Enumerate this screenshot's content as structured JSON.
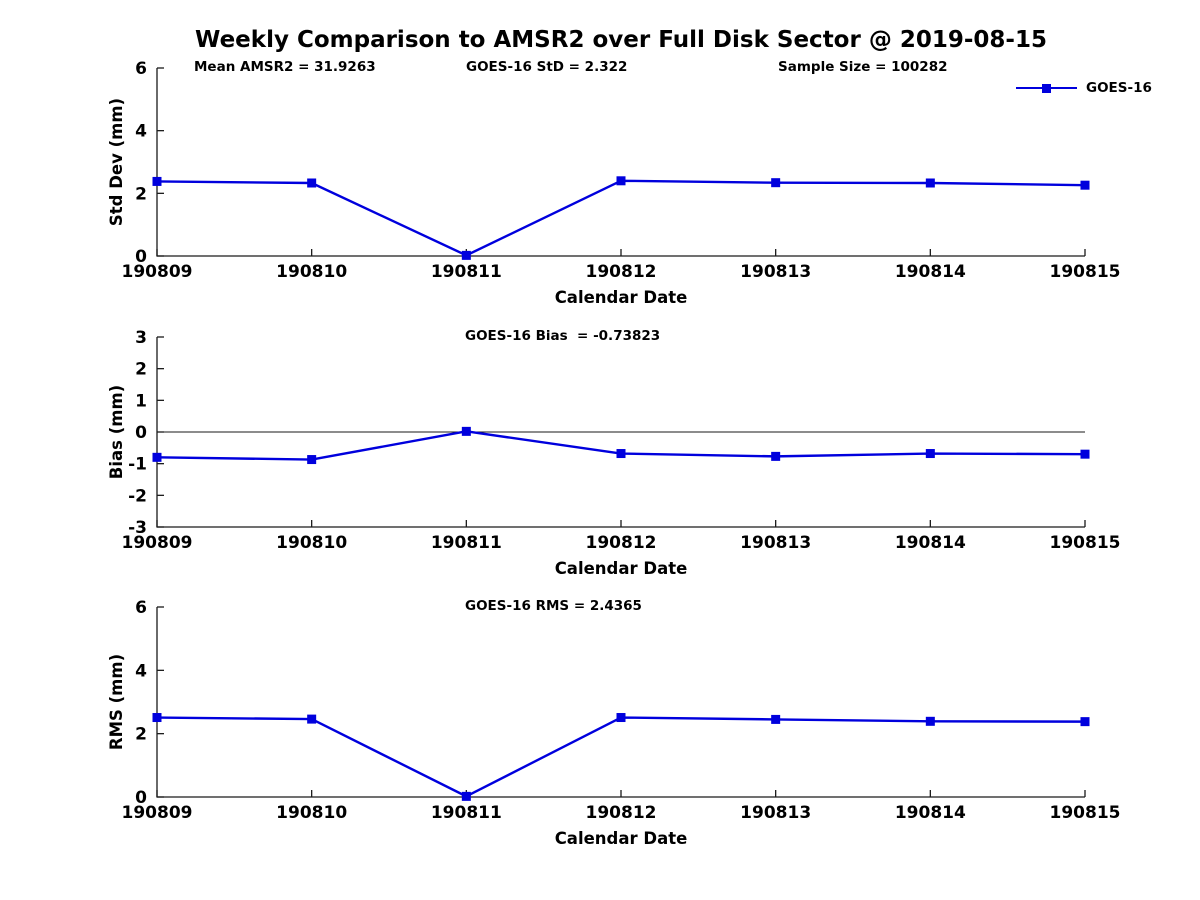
{
  "title": "Weekly Comparison to AMSR2 over Full Disk Sector @ 2019-08-15",
  "legend": {
    "label": "GOES-16",
    "color": "#0000dd",
    "marker": "square"
  },
  "colors": {
    "line": "#0000dd",
    "axis": "#1a1a1a",
    "text": "#000000",
    "zero_line": "#1a1a1a"
  },
  "stats": {
    "mean_amsr2": "31.9263",
    "goes16_std": "2.322",
    "sample_size": "100282",
    "goes16_bias": "-0.73823",
    "goes16_rms": "2.4365"
  },
  "chart_data": [
    {
      "type": "line",
      "series_name": "GOES-16",
      "ylabel": "Std Dev (mm)",
      "xlabel": "Calendar Date",
      "categories": [
        "190809",
        "190810",
        "190811",
        "190812",
        "190813",
        "190814",
        "190815"
      ],
      "values": [
        2.38,
        2.33,
        0.02,
        2.4,
        2.34,
        2.33,
        2.26
      ],
      "ylim": [
        0,
        6
      ],
      "yticks": [
        0,
        2,
        4,
        6
      ],
      "zero_line": false,
      "grid": false,
      "marker": "square",
      "annotations": [
        "Mean AMSR2 = 31.9263",
        "GOES-16 StD = 2.322",
        "Sample Size = 100282"
      ]
    },
    {
      "type": "line",
      "series_name": "GOES-16",
      "ylabel": "Bias (mm)",
      "xlabel": "Calendar Date",
      "categories": [
        "190809",
        "190810",
        "190811",
        "190812",
        "190813",
        "190814",
        "190815"
      ],
      "values": [
        -0.8,
        -0.87,
        0.02,
        -0.68,
        -0.77,
        -0.68,
        -0.7
      ],
      "ylim": [
        -3,
        3
      ],
      "yticks": [
        3,
        2,
        1,
        0,
        -1,
        -2,
        -3
      ],
      "zero_line": true,
      "grid": false,
      "marker": "square",
      "annotations": [
        "GOES-16 Bias  = -0.73823"
      ]
    },
    {
      "type": "line",
      "series_name": "GOES-16",
      "ylabel": "RMS (mm)",
      "xlabel": "Calendar Date",
      "categories": [
        "190809",
        "190810",
        "190811",
        "190812",
        "190813",
        "190814",
        "190815"
      ],
      "values": [
        2.51,
        2.46,
        0.02,
        2.51,
        2.45,
        2.39,
        2.38
      ],
      "ylim": [
        0,
        6
      ],
      "yticks": [
        0,
        2,
        4,
        6
      ],
      "zero_line": false,
      "grid": false,
      "marker": "square",
      "annotations": [
        "GOES-16 RMS = 2.4365"
      ]
    }
  ]
}
